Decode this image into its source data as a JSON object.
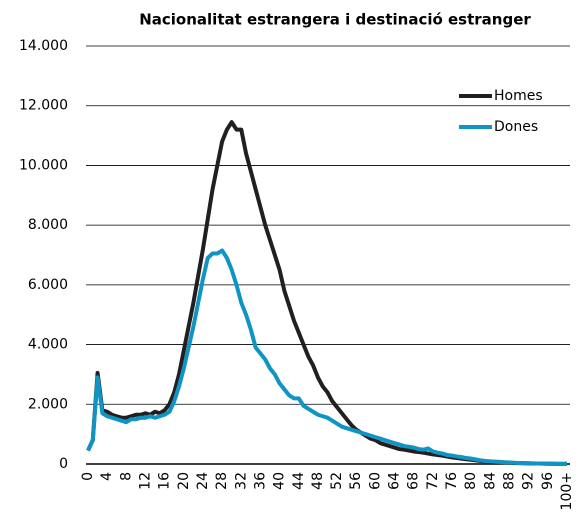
{
  "chart_data": {
    "type": "line",
    "title": "Nacionalitat estrangera i destinació estranger",
    "categories": [
      "0",
      null,
      null,
      null,
      "4",
      null,
      null,
      null,
      "8",
      null,
      null,
      null,
      "12",
      null,
      null,
      null,
      "16",
      null,
      null,
      null,
      "20",
      null,
      null,
      null,
      "24",
      null,
      null,
      null,
      "28",
      null,
      null,
      null,
      "32",
      null,
      null,
      null,
      "36",
      null,
      null,
      null,
      "40",
      null,
      null,
      null,
      "44",
      null,
      null,
      null,
      "48",
      null,
      null,
      null,
      "52",
      null,
      null,
      null,
      "56",
      null,
      null,
      null,
      "60",
      null,
      null,
      null,
      "64",
      null,
      null,
      null,
      "68",
      null,
      null,
      null,
      "72",
      null,
      null,
      null,
      "76",
      null,
      null,
      null,
      "80",
      null,
      null,
      null,
      "84",
      null,
      null,
      null,
      "88",
      null,
      null,
      null,
      "92",
      null,
      null,
      null,
      "96",
      null,
      null,
      null,
      "100+"
    ],
    "series": [
      {
        "name": "Homes",
        "color": "#231f20",
        "values": [
          450,
          800,
          3050,
          1800,
          1750,
          1650,
          1600,
          1550,
          1550,
          1600,
          1650,
          1650,
          1700,
          1650,
          1750,
          1700,
          1800,
          2000,
          2400,
          3000,
          3800,
          4600,
          5400,
          6300,
          7200,
          8200,
          9200,
          10000,
          10800,
          11200,
          11450,
          11200,
          11200,
          10400,
          9800,
          9200,
          8600,
          8000,
          7500,
          7000,
          6500,
          5800,
          5300,
          4800,
          4400,
          4000,
          3600,
          3300,
          2900,
          2600,
          2400,
          2100,
          1900,
          1700,
          1500,
          1300,
          1150,
          1050,
          950,
          850,
          800,
          700,
          650,
          600,
          550,
          500,
          480,
          450,
          420,
          400,
          380,
          350,
          320,
          300,
          280,
          250,
          220,
          200,
          180,
          160,
          140,
          120,
          100,
          90,
          80,
          70,
          60,
          50,
          40,
          35,
          30,
          25,
          20,
          18,
          15,
          12,
          10,
          8,
          6,
          5,
          10
        ]
      },
      {
        "name": "Dones",
        "color": "#0f94c4",
        "values": [
          450,
          800,
          2900,
          1700,
          1600,
          1550,
          1500,
          1450,
          1400,
          1500,
          1500,
          1550,
          1550,
          1600,
          1550,
          1600,
          1650,
          1750,
          2100,
          2600,
          3200,
          3900,
          4600,
          5400,
          6200,
          6900,
          7050,
          7050,
          7150,
          6900,
          6500,
          6000,
          5400,
          5000,
          4500,
          3900,
          3700,
          3500,
          3200,
          3000,
          2700,
          2500,
          2300,
          2200,
          2200,
          1950,
          1850,
          1750,
          1650,
          1600,
          1550,
          1450,
          1350,
          1250,
          1200,
          1150,
          1100,
          1050,
          1000,
          950,
          900,
          850,
          800,
          750,
          700,
          650,
          600,
          580,
          550,
          500,
          480,
          520,
          420,
          380,
          350,
          300,
          280,
          250,
          230,
          200,
          180,
          150,
          120,
          100,
          90,
          80,
          70,
          60,
          50,
          40,
          35,
          30,
          25,
          20,
          18,
          15,
          12,
          10,
          8,
          6,
          10
        ]
      }
    ],
    "ylim": [
      0,
      14000
    ],
    "yticks": [
      0,
      {
        "value": 2000,
        "label": "2.000"
      },
      {
        "value": 4000,
        "label": "4.000"
      },
      {
        "value": 6000,
        "label": "6.000"
      },
      {
        "value": 8000,
        "label": "8.000"
      },
      {
        "value": 10000,
        "label": "10.000"
      },
      {
        "value": 12000,
        "label": "12.000"
      },
      {
        "value": 14000,
        "label": "14.000"
      }
    ],
    "grid": true,
    "legend": "upper right"
  }
}
